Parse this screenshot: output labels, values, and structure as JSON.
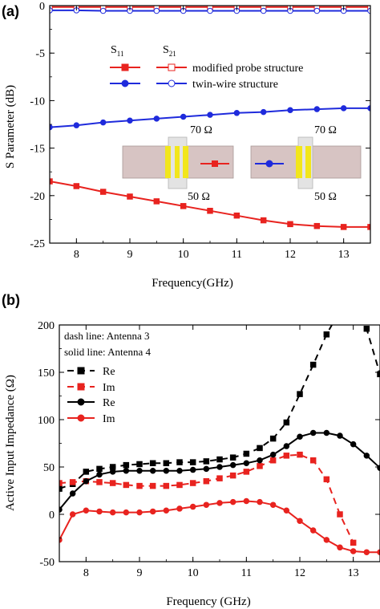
{
  "chart_data": [
    {
      "panel": "(a)",
      "type": "line",
      "xlabel": "Frequency(GHz)",
      "ylabel": "S Parameter (dB)",
      "xlim": [
        7.5,
        13.5
      ],
      "ylim": [
        -25,
        0
      ],
      "xticks": [
        "8",
        "9",
        "10",
        "11",
        "12",
        "13"
      ],
      "yticks": [
        "0",
        "-5",
        "-10",
        "-15",
        "-20",
        "-25"
      ],
      "legend_placement": "top-right",
      "legend_headers": {
        "s11": "S",
        "s11_sub": "11",
        "s21": "S",
        "s21_sub": "21"
      },
      "legend_rows": [
        "modified probe structure",
        "twin-wire structure"
      ],
      "series": [
        {
          "group": "modified probe structure",
          "param": "S11",
          "color": "#e8231f",
          "marker": "filled-square",
          "x": [
            7.5,
            8.0,
            8.5,
            9.0,
            9.5,
            10.0,
            10.5,
            11.0,
            11.5,
            12.0,
            12.5,
            13.0,
            13.5
          ],
          "y": [
            -18.5,
            -19.0,
            -19.6,
            -20.1,
            -20.6,
            -21.1,
            -21.6,
            -22.1,
            -22.6,
            -23.0,
            -23.2,
            -23.3,
            -23.3
          ]
        },
        {
          "group": "modified probe structure",
          "param": "S21",
          "color": "#e8231f",
          "marker": "open-square",
          "x": [
            7.5,
            8.0,
            8.5,
            9.0,
            9.5,
            10.0,
            10.5,
            11.0,
            11.5,
            12.0,
            12.5,
            13.0,
            13.5
          ],
          "y": [
            -0.15,
            -0.15,
            -0.15,
            -0.15,
            -0.15,
            -0.15,
            -0.15,
            -0.15,
            -0.15,
            -0.15,
            -0.15,
            -0.15,
            -0.15
          ]
        },
        {
          "group": "twin-wire structure",
          "param": "S11",
          "color": "#1f2bdc",
          "marker": "filled-circle",
          "x": [
            7.5,
            8.0,
            8.5,
            9.0,
            9.5,
            10.0,
            10.5,
            11.0,
            11.5,
            12.0,
            12.5,
            13.0,
            13.5
          ],
          "y": [
            -12.8,
            -12.6,
            -12.3,
            -12.1,
            -11.9,
            -11.7,
            -11.5,
            -11.3,
            -11.2,
            -11.0,
            -10.9,
            -10.8,
            -10.8
          ]
        },
        {
          "group": "twin-wire structure",
          "param": "S21",
          "color": "#1f2bdc",
          "marker": "open-circle",
          "x": [
            7.5,
            8.0,
            8.5,
            9.0,
            9.5,
            10.0,
            10.5,
            11.0,
            11.5,
            12.0,
            12.5,
            13.0,
            13.5
          ],
          "y": [
            -0.5,
            -0.5,
            -0.55,
            -0.55,
            -0.55,
            -0.55,
            -0.55,
            -0.55,
            -0.55,
            -0.55,
            -0.55,
            -0.55,
            -0.55
          ]
        }
      ],
      "inset": {
        "label_top_left": "70 Ω",
        "label_top_right": "70 Ω",
        "label_bottom_left": "50 Ω",
        "label_bottom_right": "50 Ω"
      }
    },
    {
      "panel": "(b)",
      "type": "line",
      "xlabel": "Frequency (GHz)",
      "ylabel": "Active Input Impedance (Ω)",
      "xlim": [
        7.5,
        13.5
      ],
      "ylim": [
        -50,
        200
      ],
      "xticks": [
        "8",
        "9",
        "10",
        "11",
        "12",
        "13"
      ],
      "yticks": [
        "200",
        "150",
        "100",
        "50",
        "0",
        "-50"
      ],
      "annotations": [
        "dash line: Antenna 3",
        "solid line: Antenna 4"
      ],
      "legend_placement": "top-left",
      "series": [
        {
          "name": "Re",
          "antenna": "Antenna 3",
          "style": "dash",
          "color": "#000000",
          "marker": "square",
          "x": [
            7.5,
            7.75,
            8.0,
            8.25,
            8.5,
            8.75,
            9.0,
            9.25,
            9.5,
            9.75,
            10.0,
            10.25,
            10.5,
            10.75,
            11.0,
            11.25,
            11.5,
            11.75,
            12.0,
            12.25,
            12.5,
            12.75,
            13.0,
            13.25,
            13.5
          ],
          "y": [
            27,
            32,
            45,
            48,
            50,
            52,
            53,
            54,
            54,
            55,
            55,
            56,
            58,
            60,
            64,
            70,
            80,
            97,
            127,
            158,
            190,
            215,
            215,
            196,
            148
          ]
        },
        {
          "name": "Im",
          "antenna": "Antenna 3",
          "style": "dash",
          "color": "#e8231f",
          "marker": "square",
          "x": [
            7.5,
            7.75,
            8.0,
            8.25,
            8.5,
            8.75,
            9.0,
            9.25,
            9.5,
            9.75,
            10.0,
            10.25,
            10.5,
            10.75,
            11.0,
            11.25,
            11.5,
            11.75,
            12.0,
            12.25,
            12.5,
            12.75,
            13.0
          ],
          "y": [
            33,
            34,
            35,
            34,
            33,
            31,
            30,
            30,
            30,
            31,
            33,
            35,
            38,
            41,
            45,
            51,
            57,
            62,
            63,
            57,
            37,
            0,
            -30
          ]
        },
        {
          "name": "Re",
          "antenna": "Antenna 4",
          "style": "solid",
          "color": "#000000",
          "marker": "circle",
          "x": [
            7.5,
            7.75,
            8.0,
            8.25,
            8.5,
            8.75,
            9.0,
            9.25,
            9.5,
            9.75,
            10.0,
            10.25,
            10.5,
            10.75,
            11.0,
            11.25,
            11.5,
            11.75,
            12.0,
            12.25,
            12.5,
            12.75,
            13.0,
            13.25,
            13.5
          ],
          "y": [
            5,
            22,
            35,
            42,
            45,
            46,
            46,
            46,
            46,
            46,
            47,
            48,
            50,
            52,
            54,
            57,
            63,
            72,
            82,
            86,
            86,
            83,
            74,
            62,
            49
          ]
        },
        {
          "name": "Im",
          "antenna": "Antenna 4",
          "style": "solid",
          "color": "#e8231f",
          "marker": "circle",
          "x": [
            7.5,
            7.75,
            8.0,
            8.25,
            8.5,
            8.75,
            9.0,
            9.25,
            9.5,
            9.75,
            10.0,
            10.25,
            10.5,
            10.75,
            11.0,
            11.25,
            11.5,
            11.75,
            12.0,
            12.25,
            12.5,
            12.75,
            13.0,
            13.25,
            13.5
          ],
          "y": [
            -27,
            0,
            4,
            3,
            2,
            2,
            2,
            3,
            4,
            6,
            8,
            10,
            12,
            13,
            14,
            13,
            10,
            4,
            -7,
            -17,
            -27,
            -35,
            -39,
            -40,
            -40
          ]
        }
      ]
    }
  ]
}
